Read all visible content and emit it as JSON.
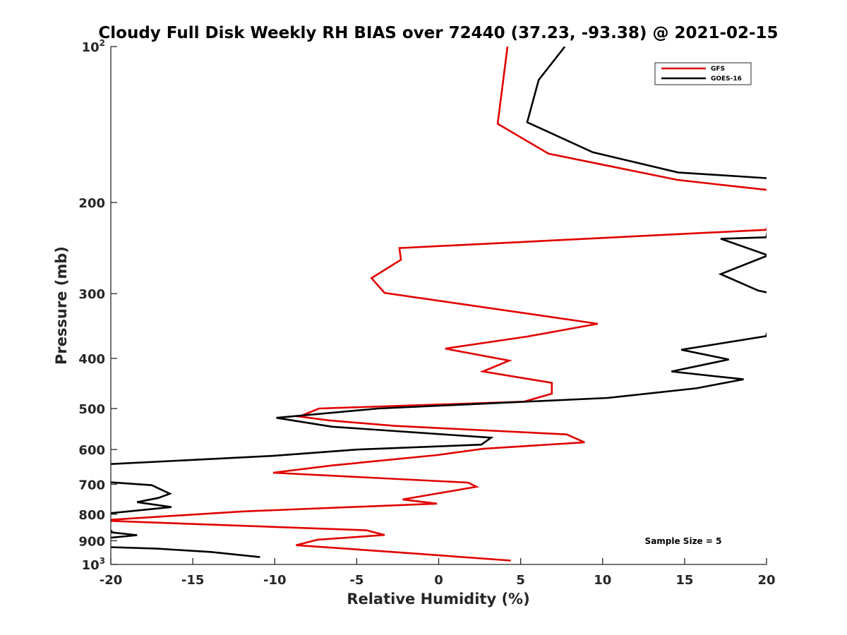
{
  "chart_data": {
    "type": "line",
    "title": "Cloudy Full Disk Weekly RH BIAS over 72440 (37.23, -93.38) @ 2021-02-15",
    "xlabel": "Relative Humidity (%)",
    "ylabel": "Pressure (mb)",
    "xlim": [
      -20,
      20
    ],
    "ylim": [
      100,
      1000
    ],
    "yscale": "log",
    "y_reversed": true,
    "grid": false,
    "legend_position": "top-right",
    "x_ticks": [
      -20,
      -15,
      -10,
      -5,
      0,
      5,
      10,
      15,
      20
    ],
    "x_tick_labels": [
      "-20",
      "-15",
      "-10",
      "-5",
      "0",
      "5",
      "10",
      "15",
      "20"
    ],
    "y_ticks": [
      100,
      200,
      300,
      400,
      500,
      600,
      700,
      800,
      900,
      1000
    ],
    "y_tick_labels": [
      {
        "base": "10",
        "sup": "2"
      },
      {
        "base": "200",
        "sup": ""
      },
      {
        "base": "300",
        "sup": ""
      },
      {
        "base": "400",
        "sup": ""
      },
      {
        "base": "500",
        "sup": ""
      },
      {
        "base": "600",
        "sup": ""
      },
      {
        "base": "700",
        "sup": ""
      },
      {
        "base": "800",
        "sup": ""
      },
      {
        "base": "900",
        "sup": ""
      },
      {
        "base": "10",
        "sup": "3"
      }
    ],
    "series": [
      {
        "name": "GFS",
        "color": "#e00000",
        "points": [
          [
            4.2,
            100
          ],
          [
            3.6,
            141
          ],
          [
            6.7,
            161
          ],
          [
            14.6,
            181
          ],
          [
            20.6,
            190
          ],
          [
            20,
            226
          ],
          [
            21,
            225
          ],
          [
            -2.4,
            245
          ],
          [
            -2.3,
            258
          ],
          [
            -4.1,
            280
          ],
          [
            -3.3,
            299
          ],
          [
            4.3,
            324
          ],
          [
            9.7,
            343
          ],
          [
            5.4,
            363
          ],
          [
            0.4,
            383
          ],
          [
            4.3,
            404
          ],
          [
            2.7,
            424
          ],
          [
            6.9,
            446
          ],
          [
            6.9,
            468
          ],
          [
            5.2,
            485
          ],
          [
            -7.3,
            500
          ],
          [
            -8.5,
            518
          ],
          [
            -6.7,
            527
          ],
          [
            -2.7,
            540
          ],
          [
            7.8,
            561
          ],
          [
            8.9,
            581
          ],
          [
            2.7,
            598
          ],
          [
            -0.1,
            615
          ],
          [
            -6.5,
            644
          ],
          [
            -10.1,
            665
          ],
          [
            1.8,
            695
          ],
          [
            2.3,
            708
          ],
          [
            0.3,
            726
          ],
          [
            -2.2,
            749
          ],
          [
            -0.1,
            763
          ],
          [
            -12,
            790
          ],
          [
            -20,
            820
          ],
          [
            -21,
            822
          ],
          [
            -4.4,
            859
          ],
          [
            -3.3,
            877
          ],
          [
            -7.4,
            896
          ],
          [
            -8.7,
            918
          ],
          [
            -2.2,
            949
          ],
          [
            4.4,
            983
          ]
        ]
      },
      {
        "name": "GOES-16",
        "color": "#000000",
        "points": [
          [
            7.7,
            100
          ],
          [
            6.1,
            116
          ],
          [
            5.4,
            140
          ],
          [
            9.4,
            160
          ],
          [
            14.6,
            175
          ],
          [
            20.6,
            180
          ],
          [
            20,
            233
          ],
          [
            21,
            233
          ],
          [
            17.2,
            235
          ],
          [
            20.1,
            253
          ],
          [
            17.2,
            275
          ],
          [
            19.5,
            296
          ],
          [
            20.8,
            302
          ],
          [
            20,
            360
          ],
          [
            21,
            358
          ],
          [
            14.8,
            385
          ],
          [
            17.7,
            402
          ],
          [
            14.2,
            424
          ],
          [
            18.6,
            439
          ],
          [
            15.7,
            457
          ],
          [
            10.3,
            477
          ],
          [
            -3.7,
            500
          ],
          [
            -9.9,
            521
          ],
          [
            -6.5,
            542
          ],
          [
            3.2,
            569
          ],
          [
            2.6,
            587
          ],
          [
            -5,
            600
          ],
          [
            -10.1,
            617
          ],
          [
            -20,
            640
          ],
          [
            -21,
            640
          ],
          [
            -20,
            694
          ],
          [
            -17.5,
            703
          ],
          [
            -16.4,
            730
          ],
          [
            -17.1,
            744
          ],
          [
            -18.4,
            758
          ],
          [
            -16.3,
            775
          ],
          [
            -20,
            796
          ],
          [
            -21,
            798
          ],
          [
            -20,
            860
          ],
          [
            -21,
            860
          ],
          [
            -18.4,
            878
          ],
          [
            -20,
            888
          ],
          [
            -21,
            888
          ],
          [
            -20,
            926
          ],
          [
            -17.2,
            932
          ],
          [
            -13.9,
            946
          ],
          [
            -10.9,
            968
          ]
        ]
      }
    ],
    "annotation": "Sample Size = 5"
  }
}
